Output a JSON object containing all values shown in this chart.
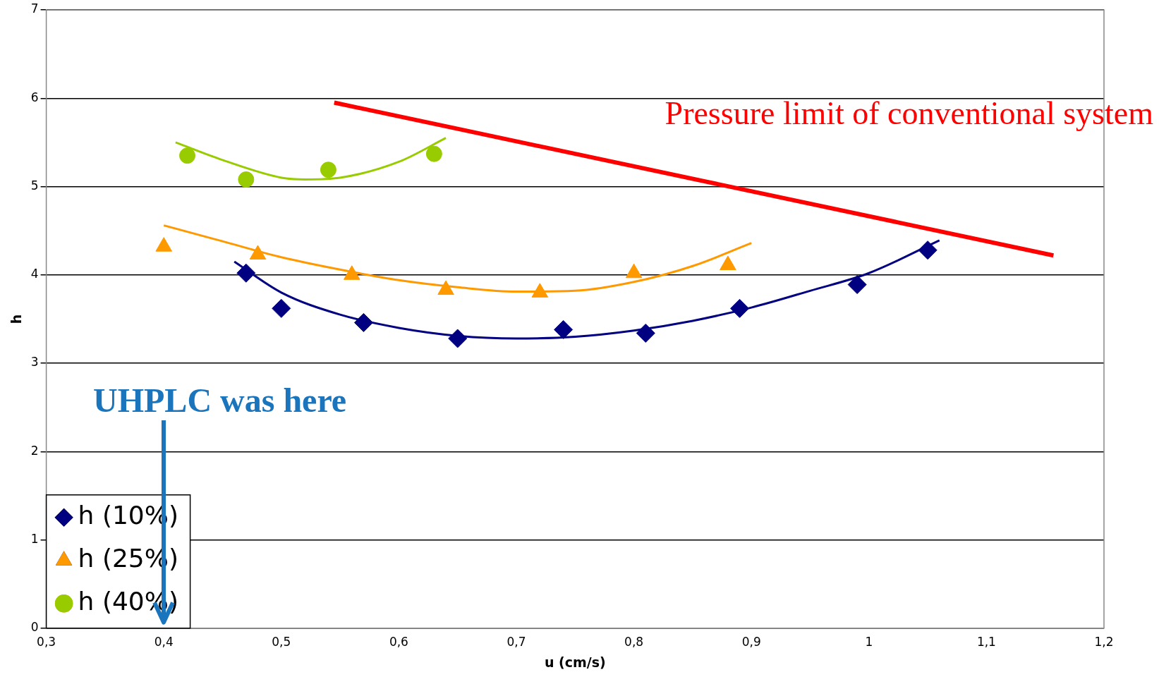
{
  "chart_data": {
    "type": "scatter",
    "xlabel": "u (cm/s)",
    "ylabel": "h",
    "xlim": [
      0.3,
      1.2
    ],
    "ylim": [
      0,
      7
    ],
    "xticks": [
      {
        "value": 0.3,
        "label": "0,3"
      },
      {
        "value": 0.4,
        "label": "0,4"
      },
      {
        "value": 0.5,
        "label": "0,5"
      },
      {
        "value": 0.6,
        "label": "0,6"
      },
      {
        "value": 0.7,
        "label": "0,7"
      },
      {
        "value": 0.8,
        "label": "0,8"
      },
      {
        "value": 0.9,
        "label": "0,9"
      },
      {
        "value": 1,
        "label": "1"
      },
      {
        "value": 1.1,
        "label": "1,1"
      },
      {
        "value": 1.2,
        "label": "1,2"
      }
    ],
    "yticks": [
      0,
      1,
      2,
      3,
      4,
      5,
      6,
      7
    ],
    "grid": "y",
    "legend": "bottom left",
    "series": [
      {
        "name": "h (10%)",
        "color": "#000080",
        "marker": "diamond",
        "x": [
          0.47,
          0.5,
          0.57,
          0.65,
          0.74,
          0.81,
          0.89,
          0.99,
          1.05
        ],
        "values": [
          4.02,
          3.62,
          3.46,
          3.28,
          3.38,
          3.34,
          3.62,
          3.89,
          4.28
        ]
      },
      {
        "name": "h (25%)",
        "color": "#ff9900",
        "marker": "triangle",
        "x": [
          0.4,
          0.48,
          0.56,
          0.64,
          0.72,
          0.8,
          0.88
        ],
        "values": [
          4.32,
          4.23,
          4.0,
          3.83,
          3.8,
          4.02,
          4.11
        ]
      },
      {
        "name": "h (40%)",
        "color": "#99cc00",
        "marker": "circle",
        "x": [
          0.42,
          0.47,
          0.54,
          0.63
        ],
        "values": [
          5.35,
          5.08,
          5.19,
          5.37
        ]
      },
      {
        "type": "line",
        "color": "#000080",
        "marker": "none",
        "x": [
          0.46,
          0.5,
          0.55,
          0.6,
          0.65,
          0.7,
          0.75,
          0.8,
          0.85,
          0.9,
          0.95,
          1.0,
          1.06
        ],
        "values": [
          4.15,
          3.8,
          3.55,
          3.4,
          3.31,
          3.28,
          3.3,
          3.37,
          3.48,
          3.63,
          3.82,
          4.02,
          4.39
        ]
      },
      {
        "type": "line",
        "color": "#ff9900",
        "marker": "none",
        "x": [
          0.4,
          0.45,
          0.5,
          0.55,
          0.6,
          0.65,
          0.7,
          0.75,
          0.8,
          0.85,
          0.9
        ],
        "values": [
          4.56,
          4.38,
          4.2,
          4.06,
          3.94,
          3.86,
          3.81,
          3.82,
          3.92,
          4.1,
          4.36
        ]
      },
      {
        "type": "line",
        "color": "#99cc00",
        "marker": "none",
        "x": [
          0.41,
          0.45,
          0.5,
          0.52,
          0.55,
          0.6,
          0.64
        ],
        "values": [
          5.5,
          5.3,
          5.1,
          5.08,
          5.1,
          5.28,
          5.55
        ]
      },
      {
        "type": "line",
        "name": "Pressure limit of conventional system",
        "color": "#ff0000",
        "marker": "none",
        "x": [
          0.545,
          1.157
        ],
        "values": [
          5.95,
          4.22
        ]
      }
    ],
    "annotations": [
      "UHPLC was here"
    ]
  }
}
